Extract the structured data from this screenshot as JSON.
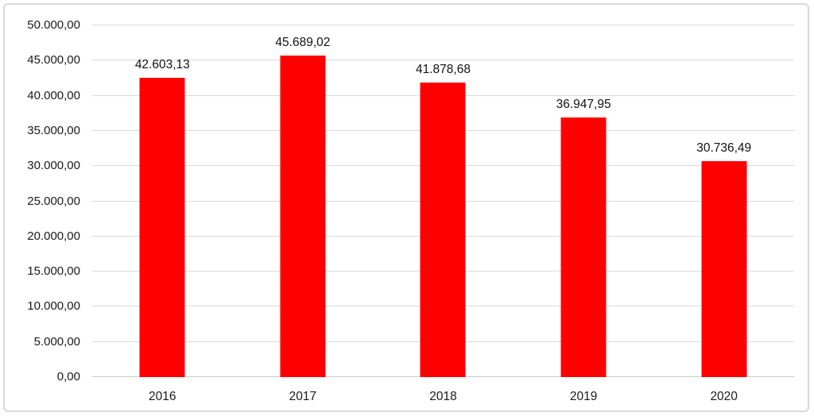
{
  "chart_data": {
    "type": "bar",
    "title": "",
    "xlabel": "",
    "ylabel": "",
    "categories": [
      "2016",
      "2017",
      "2018",
      "2019",
      "2020"
    ],
    "values": [
      42603.13,
      45689.02,
      41878.68,
      36947.95,
      30736.49
    ],
    "value_labels": [
      "42.603,13",
      "45.689,02",
      "41.878,68",
      "36.947,95",
      "30.736,49"
    ],
    "ylim": [
      0,
      50000
    ],
    "ytick_step": 5000,
    "ytick_labels": [
      "0,00",
      "5.000,00",
      "10.000,00",
      "15.000,00",
      "20.000,00",
      "25.000,00",
      "30.000,00",
      "35.000,00",
      "40.000,00",
      "45.000,00",
      "50.000,00"
    ],
    "grid": true,
    "legend_position": "none",
    "number_format": "european"
  },
  "colors": {
    "bar": "#ff0000",
    "gridline": "#d9d9d9",
    "frame_border": "#d9d9d9",
    "text": "#1a1a1a",
    "background": "#ffffff"
  }
}
